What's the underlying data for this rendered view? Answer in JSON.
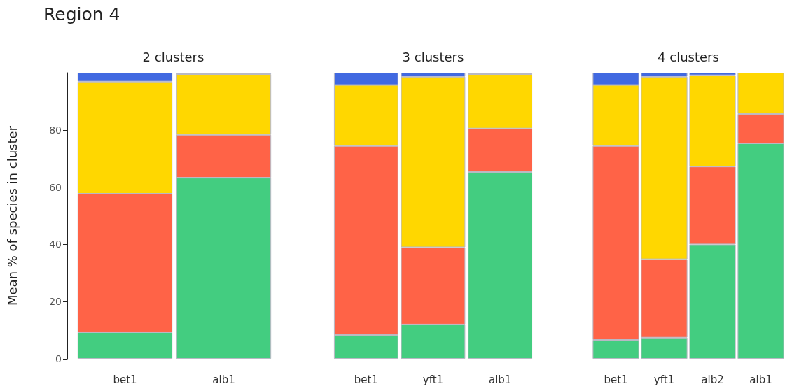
{
  "chart_data": [
    {
      "type": "bar",
      "title": "2 clusters",
      "ylabel": "Mean % of species in cluster",
      "annotations": [
        "Region 4"
      ],
      "stacked": true,
      "categories": [
        "bet1",
        "alb1"
      ],
      "ylim": [
        0,
        100
      ],
      "yticks": [
        0,
        20,
        40,
        60,
        80
      ],
      "series": [
        {
          "color": "#43cd80",
          "values": [
            9.3,
            63.3
          ]
        },
        {
          "color": "#ff6347",
          "values": [
            48.4,
            15
          ]
        },
        {
          "color": "#ffd700",
          "values": [
            39.2,
            21.2
          ]
        },
        {
          "color": "#4169e1",
          "values": [
            3.1,
            0.5
          ]
        }
      ]
    },
    {
      "type": "bar",
      "title": "3 clusters",
      "stacked": true,
      "tick_labels": "x",
      "categories": [
        "bet1",
        "yft1",
        "alb1"
      ],
      "ylim": [
        0,
        100
      ],
      "yticks": [
        0,
        20,
        40,
        60,
        80
      ],
      "series": [
        {
          "color": "#43cd80",
          "values": [
            8.3,
            12,
            65.3
          ]
        },
        {
          "color": "#ff6347",
          "values": [
            66.1,
            27,
            15.2
          ]
        },
        {
          "color": "#ffd700",
          "values": [
            21.3,
            59.6,
            19
          ]
        },
        {
          "color": "#4169e1",
          "values": [
            4.3,
            1.4,
            0.5
          ]
        }
      ]
    },
    {
      "type": "bar",
      "title": "4 clusters",
      "stacked": true,
      "tick_labels": "x",
      "categories": [
        "bet1",
        "yft1",
        "alb2",
        "alb1"
      ],
      "ylim": [
        0,
        100
      ],
      "yticks": [
        0,
        20,
        40,
        60,
        80
      ],
      "series": [
        {
          "color": "#43cd80",
          "values": [
            6.6,
            7.4,
            40,
            75.3
          ]
        },
        {
          "color": "#ff6347",
          "values": [
            67.8,
            27.4,
            27.2,
            10.3
          ]
        },
        {
          "color": "#ffd700",
          "values": [
            21.3,
            63.8,
            31.9,
            14.4
          ]
        },
        {
          "color": "#4169e1",
          "values": [
            4.3,
            1.4,
            0.9,
            0
          ]
        }
      ]
    }
  ]
}
